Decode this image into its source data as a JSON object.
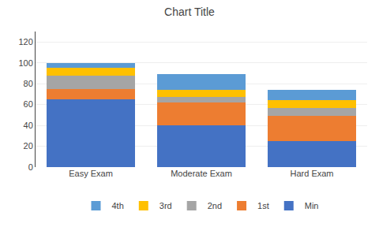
{
  "chart_data": {
    "type": "bar",
    "stacked": true,
    "title": "Chart Title",
    "categories": [
      "Easy Exam",
      "Moderate Exam",
      "Hard Exam"
    ],
    "series": [
      {
        "name": "Min",
        "color": "#4472C4",
        "values": [
          65,
          40,
          25
        ]
      },
      {
        "name": "1st",
        "color": "#ED7D31",
        "values": [
          10,
          22,
          24
        ]
      },
      {
        "name": "2nd",
        "color": "#A5A5A5",
        "values": [
          13,
          5,
          8
        ]
      },
      {
        "name": "3rd",
        "color": "#FFC000",
        "values": [
          7,
          7,
          7
        ]
      },
      {
        "name": "4th",
        "color": "#5B9BD5",
        "values": [
          5,
          15,
          10
        ]
      }
    ],
    "ylim": [
      0,
      130
    ],
    "yticks": [
      0,
      20,
      40,
      60,
      80,
      100,
      120
    ],
    "grid": true,
    "legend": "bottom"
  }
}
